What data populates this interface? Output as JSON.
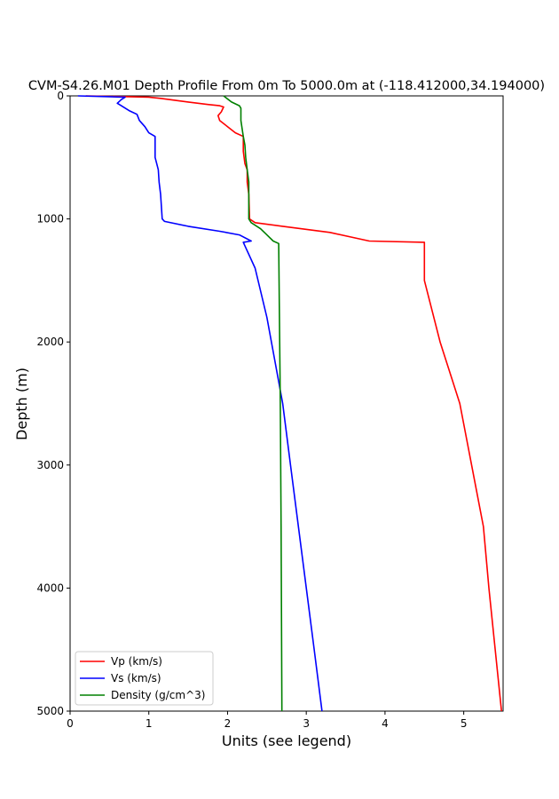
{
  "chart_data": {
    "type": "line",
    "title": "CVM-S4.26.M01 Depth Profile From 0m To 5000.0m at (-118.412000,34.194000)",
    "xlabel": "Units (see legend)",
    "ylabel": "Depth (m)",
    "xlim": [
      0,
      5.5
    ],
    "ylim": [
      0,
      5000
    ],
    "y_inverted": true,
    "x_ticks": [
      "0",
      "1",
      "2",
      "3",
      "4",
      "5"
    ],
    "y_ticks": [
      "0",
      "1000",
      "2000",
      "3000",
      "4000",
      "5000"
    ],
    "grid": false,
    "legend_position": "lower-left",
    "series": [
      {
        "name": "Vp (km/s)",
        "color": "#ff0000",
        "points": [
          [
            0.2,
            0
          ],
          [
            1.0,
            10
          ],
          [
            1.15,
            20
          ],
          [
            1.5,
            50
          ],
          [
            1.75,
            70
          ],
          [
            1.9,
            80
          ],
          [
            1.95,
            90
          ],
          [
            1.92,
            130
          ],
          [
            1.88,
            160
          ],
          [
            1.9,
            200
          ],
          [
            2.0,
            250
          ],
          [
            2.1,
            300
          ],
          [
            2.2,
            330
          ],
          [
            2.2,
            450
          ],
          [
            2.22,
            550
          ],
          [
            2.25,
            600
          ],
          [
            2.25,
            700
          ],
          [
            2.27,
            800
          ],
          [
            2.28,
            1000
          ],
          [
            2.35,
            1030
          ],
          [
            2.7,
            1060
          ],
          [
            3.3,
            1110
          ],
          [
            3.8,
            1180
          ],
          [
            4.5,
            1190
          ],
          [
            4.5,
            1500
          ],
          [
            4.7,
            2000
          ],
          [
            4.95,
            2500
          ],
          [
            5.1,
            3000
          ],
          [
            5.25,
            3500
          ],
          [
            5.32,
            4000
          ],
          [
            5.4,
            4500
          ],
          [
            5.48,
            5000
          ]
        ]
      },
      {
        "name": "Vs (km/s)",
        "color": "#0000ff",
        "points": [
          [
            0.1,
            0
          ],
          [
            0.4,
            5
          ],
          [
            0.7,
            10
          ],
          [
            0.65,
            30
          ],
          [
            0.6,
            60
          ],
          [
            0.65,
            80
          ],
          [
            0.75,
            120
          ],
          [
            0.85,
            150
          ],
          [
            0.88,
            200
          ],
          [
            0.95,
            250
          ],
          [
            1.0,
            300
          ],
          [
            1.08,
            330
          ],
          [
            1.08,
            500
          ],
          [
            1.1,
            550
          ],
          [
            1.12,
            600
          ],
          [
            1.13,
            700
          ],
          [
            1.15,
            800
          ],
          [
            1.17,
            1000
          ],
          [
            1.2,
            1020
          ],
          [
            1.5,
            1060
          ],
          [
            1.9,
            1100
          ],
          [
            2.15,
            1130
          ],
          [
            2.3,
            1180
          ],
          [
            2.2,
            1190
          ],
          [
            2.35,
            1400
          ],
          [
            2.5,
            1800
          ],
          [
            2.7,
            2500
          ],
          [
            2.8,
            3000
          ],
          [
            2.9,
            3500
          ],
          [
            3.0,
            4000
          ],
          [
            3.1,
            4500
          ],
          [
            3.2,
            5000
          ]
        ]
      },
      {
        "name": "Density (g/cm^3)",
        "color": "#008000",
        "points": [
          [
            1.95,
            0
          ],
          [
            2.05,
            50
          ],
          [
            2.15,
            80
          ],
          [
            2.17,
            100
          ],
          [
            2.17,
            200
          ],
          [
            2.2,
            330
          ],
          [
            2.22,
            400
          ],
          [
            2.23,
            500
          ],
          [
            2.25,
            600
          ],
          [
            2.27,
            700
          ],
          [
            2.27,
            800
          ],
          [
            2.27,
            1000
          ],
          [
            2.3,
            1030
          ],
          [
            2.42,
            1080
          ],
          [
            2.5,
            1130
          ],
          [
            2.58,
            1180
          ],
          [
            2.65,
            1200
          ],
          [
            2.67,
            2500
          ],
          [
            2.68,
            3500
          ],
          [
            2.69,
            5000
          ]
        ]
      }
    ]
  }
}
